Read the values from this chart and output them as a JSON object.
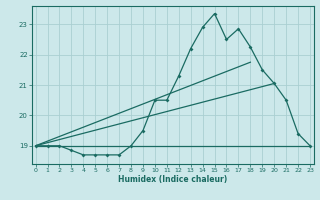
{
  "xlabel": "Humidex (Indice chaleur)",
  "ylabel": "",
  "xlim": [
    -0.3,
    23.3
  ],
  "ylim": [
    18.4,
    23.6
  ],
  "yticks": [
    19,
    20,
    21,
    22,
    23
  ],
  "xticks": [
    0,
    1,
    2,
    3,
    4,
    5,
    6,
    7,
    8,
    9,
    10,
    11,
    12,
    13,
    14,
    15,
    16,
    17,
    18,
    19,
    20,
    21,
    22,
    23
  ],
  "background_color": "#cce8ea",
  "grid_color": "#aacfd2",
  "line_color": "#1a6b62",
  "line1_x": [
    0,
    1,
    2,
    3,
    4,
    5,
    6,
    7,
    8,
    9,
    10,
    11,
    12,
    13,
    14,
    15,
    16,
    17,
    18,
    19,
    20,
    21,
    22,
    23
  ],
  "line1_y": [
    19.0,
    19.0,
    19.0,
    18.85,
    18.7,
    18.7,
    18.7,
    18.7,
    19.0,
    19.5,
    20.5,
    20.5,
    21.3,
    22.2,
    22.9,
    23.35,
    22.5,
    22.85,
    22.25,
    21.5,
    21.05,
    20.5,
    19.4,
    19.0
  ],
  "line2_x": [
    0,
    18
  ],
  "line2_y": [
    19.0,
    21.75
  ],
  "line3_x": [
    0,
    20
  ],
  "line3_y": [
    19.0,
    21.05
  ],
  "line4_x": [
    0,
    23
  ],
  "line4_y": [
    19.0,
    19.0
  ]
}
